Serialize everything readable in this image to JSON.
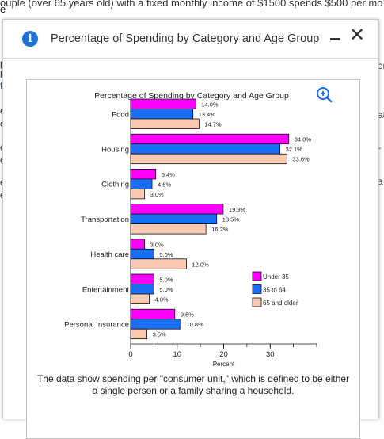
{
  "background": {
    "top_line": "ouple (over 65 years old) with a fixed monthly income of $1500 spends $500 per mo",
    "second_line": "e",
    "left_fragments": [
      "t",
      "pl",
      "lo",
      "t",
      "e",
      "e",
      "e",
      "e",
      "e",
      "e"
    ],
    "right_fragments": [
      "or",
      "at",
      "r",
      "a"
    ]
  },
  "dialog": {
    "title": "Percentage of Spending by Category and Age Group",
    "info_icon_glyph": "i",
    "close_glyph": "✕"
  },
  "chart_data": {
    "type": "bar",
    "orientation": "horizontal",
    "title": "Percentage of Spending by Category and Age Group",
    "xlabel": "Percent",
    "ylabel": "",
    "xlim": [
      0,
      40
    ],
    "xticks": [
      0,
      10,
      20,
      30
    ],
    "grid": false,
    "legend_position": "right",
    "categories": [
      "Food",
      "Housing",
      "Clothing",
      "Transportation",
      "Health care",
      "Entertainment",
      "Personal Insurance"
    ],
    "series": [
      {
        "name": "Under 35",
        "color": "#ff00ff",
        "values": [
          14.0,
          34.0,
          5.4,
          19.9,
          3.0,
          5.0,
          9.5
        ]
      },
      {
        "name": "35 to 64",
        "color": "#1a6ef5",
        "values": [
          13.4,
          32.1,
          4.6,
          18.5,
          5.0,
          5.0,
          10.8
        ]
      },
      {
        "name": "65 and older",
        "color": "#f9c9b1",
        "values": [
          14.7,
          33.6,
          3.0,
          16.2,
          12.0,
          4.0,
          3.5
        ]
      }
    ],
    "value_labels": [
      [
        "14.0%",
        "13.4%",
        "14.7%"
      ],
      [
        "34.0%",
        "32.1%",
        "33.6%"
      ],
      [
        "5.4%",
        "4.6%",
        "3.0%"
      ],
      [
        "19.9%",
        "18.5%",
        "16.2%"
      ],
      [
        "3.0%",
        "5.0%",
        "12.0%"
      ],
      [
        "5.0%",
        "5.0%",
        "4.0%"
      ],
      [
        "9.5%",
        "10.8%",
        "3.5%"
      ]
    ]
  },
  "caption": "The data show spending per \"consumer unit,\" which is defined to be either a single person or a family sharing a household."
}
